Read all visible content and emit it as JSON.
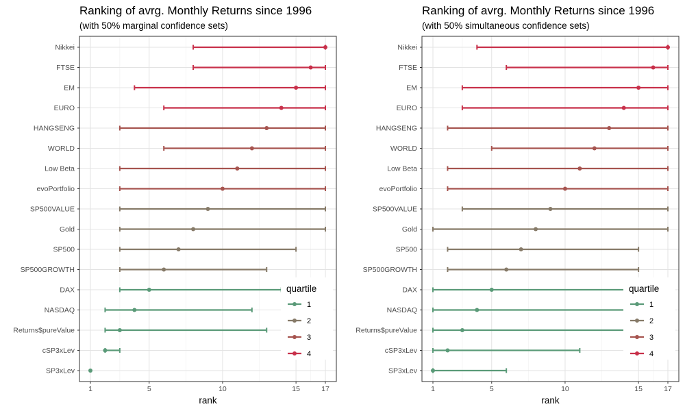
{
  "chart_data": [
    {
      "type": "interval",
      "title": "Ranking of avrg. Monthly Returns since 1996",
      "subtitle": "(with 50% marginal confidence sets)",
      "xlabel": "rank",
      "ylabel": "",
      "xlim": [
        1,
        17
      ],
      "xticks": [
        1,
        5,
        10,
        15,
        17
      ],
      "grid": true,
      "legend": {
        "title": "quartile",
        "position": "right",
        "entries": [
          "1",
          "2",
          "3",
          "4"
        ]
      },
      "colors": {
        "1": "#5a9a78",
        "2": "#867a68",
        "3": "#a6544f",
        "4": "#c8304a"
      },
      "series": [
        {
          "name": "Nikkei",
          "rank": 17,
          "lower": 8,
          "upper": 17,
          "quartile": "4"
        },
        {
          "name": "FTSE",
          "rank": 16,
          "lower": 8,
          "upper": 17,
          "quartile": "4"
        },
        {
          "name": "EM",
          "rank": 15,
          "lower": 4,
          "upper": 17,
          "quartile": "4"
        },
        {
          "name": "EURO",
          "rank": 14,
          "lower": 6,
          "upper": 17,
          "quartile": "4"
        },
        {
          "name": "HANGSENG",
          "rank": 13,
          "lower": 3,
          "upper": 17,
          "quartile": "3"
        },
        {
          "name": "WORLD",
          "rank": 12,
          "lower": 6,
          "upper": 17,
          "quartile": "3"
        },
        {
          "name": "Low Beta",
          "rank": 11,
          "lower": 3,
          "upper": 17,
          "quartile": "3"
        },
        {
          "name": "evoPortfolio",
          "rank": 10,
          "lower": 3,
          "upper": 17,
          "quartile": "3"
        },
        {
          "name": "SP500VALUE",
          "rank": 9,
          "lower": 3,
          "upper": 17,
          "quartile": "2"
        },
        {
          "name": "Gold",
          "rank": 8,
          "lower": 3,
          "upper": 17,
          "quartile": "2"
        },
        {
          "name": "SP500",
          "rank": 7,
          "lower": 3,
          "upper": 15,
          "quartile": "2"
        },
        {
          "name": "SP500GROWTH",
          "rank": 6,
          "lower": 3,
          "upper": 13,
          "quartile": "2"
        },
        {
          "name": "DAX",
          "rank": 5,
          "lower": 3,
          "upper": 14,
          "quartile": "1"
        },
        {
          "name": "NASDAQ",
          "rank": 4,
          "lower": 2,
          "upper": 12,
          "quartile": "1"
        },
        {
          "name": "Returns$pureValue",
          "rank": 3,
          "lower": 2,
          "upper": 13,
          "quartile": "1"
        },
        {
          "name": "cSP3xLev",
          "rank": 2,
          "lower": 2,
          "upper": 3,
          "quartile": "1"
        },
        {
          "name": "SP3xLev",
          "rank": 1,
          "lower": 1,
          "upper": 1,
          "quartile": "1"
        }
      ]
    },
    {
      "type": "interval",
      "title": "Ranking of avrg. Monthly Returns since 1996",
      "subtitle": "(with 50% simultaneous confidence sets)",
      "xlabel": "rank",
      "ylabel": "",
      "xlim": [
        1,
        17
      ],
      "xticks": [
        1,
        5,
        10,
        15,
        17
      ],
      "grid": true,
      "legend": {
        "title": "quartile",
        "position": "right",
        "entries": [
          "1",
          "2",
          "3",
          "4"
        ]
      },
      "colors": {
        "1": "#5a9a78",
        "2": "#867a68",
        "3": "#a6544f",
        "4": "#c8304a"
      },
      "series": [
        {
          "name": "Nikkei",
          "rank": 17,
          "lower": 4,
          "upper": 17,
          "quartile": "4"
        },
        {
          "name": "FTSE",
          "rank": 16,
          "lower": 6,
          "upper": 17,
          "quartile": "4"
        },
        {
          "name": "EM",
          "rank": 15,
          "lower": 3,
          "upper": 17,
          "quartile": "4"
        },
        {
          "name": "EURO",
          "rank": 14,
          "lower": 3,
          "upper": 17,
          "quartile": "4"
        },
        {
          "name": "HANGSENG",
          "rank": 13,
          "lower": 2,
          "upper": 17,
          "quartile": "3"
        },
        {
          "name": "WORLD",
          "rank": 12,
          "lower": 5,
          "upper": 17,
          "quartile": "3"
        },
        {
          "name": "Low Beta",
          "rank": 11,
          "lower": 2,
          "upper": 17,
          "quartile": "3"
        },
        {
          "name": "evoPortfolio",
          "rank": 10,
          "lower": 2,
          "upper": 17,
          "quartile": "3"
        },
        {
          "name": "SP500VALUE",
          "rank": 9,
          "lower": 3,
          "upper": 17,
          "quartile": "2"
        },
        {
          "name": "Gold",
          "rank": 8,
          "lower": 1,
          "upper": 17,
          "quartile": "2"
        },
        {
          "name": "SP500",
          "rank": 7,
          "lower": 2,
          "upper": 15,
          "quartile": "2"
        },
        {
          "name": "SP500GROWTH",
          "rank": 6,
          "lower": 2,
          "upper": 15,
          "quartile": "2"
        },
        {
          "name": "DAX",
          "rank": 5,
          "lower": 1,
          "upper": 17,
          "quartile": "1"
        },
        {
          "name": "NASDAQ",
          "rank": 4,
          "lower": 1,
          "upper": 17,
          "quartile": "1"
        },
        {
          "name": "Returns$pureValue",
          "rank": 3,
          "lower": 1,
          "upper": 17,
          "quartile": "1"
        },
        {
          "name": "cSP3xLev",
          "rank": 2,
          "lower": 1,
          "upper": 11,
          "quartile": "1"
        },
        {
          "name": "SP3xLev",
          "rank": 1,
          "lower": 1,
          "upper": 6,
          "quartile": "1"
        }
      ]
    }
  ]
}
